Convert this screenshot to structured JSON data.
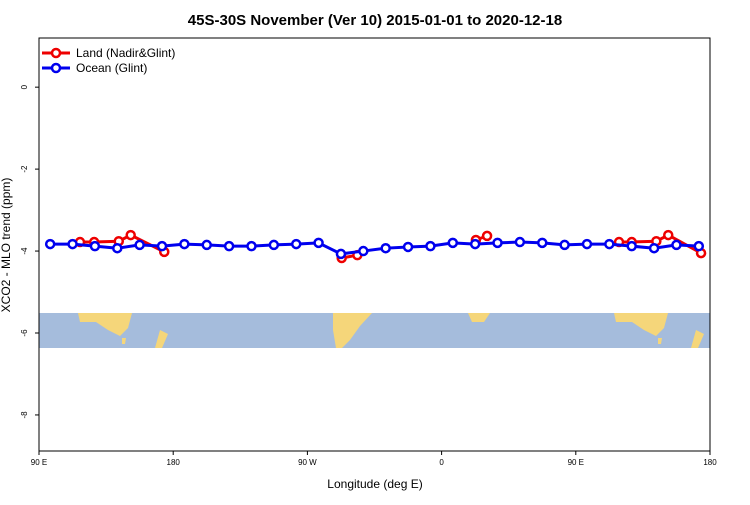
{
  "chart_data": {
    "type": "line",
    "title": "45S-30S November (Ver 10)   2015-01-01 to 2020-12-18",
    "x_label": "Longitude (deg E)",
    "y_label": "XCO2 - MLO trend (ppm)",
    "xlim": [
      90,
      540
    ],
    "ylim": [
      -8.88,
      1.2
    ],
    "xticks": [
      {
        "value": 90,
        "label": "90 E"
      },
      {
        "value": 180,
        "label": "180"
      },
      {
        "value": 270,
        "label": "90 W"
      },
      {
        "value": 360,
        "label": "0"
      },
      {
        "value": 450,
        "label": "90 E"
      },
      {
        "value": 540,
        "label": "180"
      }
    ],
    "yticks": [
      0,
      -2,
      -4,
      -6,
      -8
    ],
    "legend": "top-left",
    "series": [
      {
        "name": "Land (Nadir&Glint)",
        "color": "#ee0000",
        "x": [
          117.5,
          127,
          143.5,
          151.5,
          174,
          null,
          293,
          303.5,
          null,
          383,
          390.5,
          null,
          479,
          487.5,
          504,
          512,
          534
        ],
        "values": [
          -3.78,
          -3.78,
          -3.76,
          -3.61,
          -4.02,
          null,
          -4.17,
          -4.1,
          null,
          -3.73,
          -3.63,
          null,
          -3.78,
          -3.78,
          -3.76,
          -3.61,
          -4.05
        ]
      },
      {
        "name": "Ocean (Glint)",
        "color": "#0000ee",
        "x": [
          97.5,
          112.5,
          127.5,
          142.5,
          157.5,
          172.5,
          187.5,
          202.5,
          217.5,
          232.5,
          247.5,
          262.5,
          277.5,
          292.5,
          307.5,
          322.5,
          337.5,
          352.5,
          367.5,
          382.5,
          397.5,
          412.5,
          427.5,
          442.5,
          457.5,
          472.5,
          487.5,
          502.5,
          517.5,
          532.5
        ],
        "values": [
          -3.83,
          -3.83,
          -3.88,
          -3.93,
          -3.85,
          -3.88,
          -3.83,
          -3.85,
          -3.88,
          -3.88,
          -3.85,
          -3.83,
          -3.8,
          -4.07,
          -4.0,
          -3.93,
          -3.9,
          -3.88,
          -3.8,
          -3.83,
          -3.8,
          -3.78,
          -3.8,
          -3.85,
          -3.83,
          -3.83,
          -3.88,
          -3.93,
          -3.85,
          -3.88
        ]
      }
    ]
  }
}
